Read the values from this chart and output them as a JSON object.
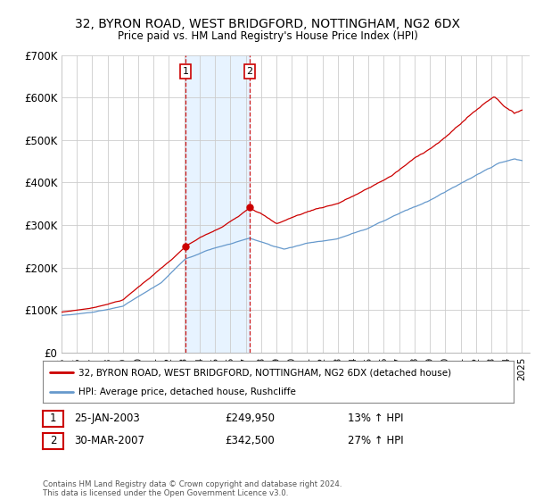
{
  "title": "32, BYRON ROAD, WEST BRIDGFORD, NOTTINGHAM, NG2 6DX",
  "subtitle": "Price paid vs. HM Land Registry's House Price Index (HPI)",
  "legend_line1": "32, BYRON ROAD, WEST BRIDGFORD, NOTTINGHAM, NG2 6DX (detached house)",
  "legend_line2": "HPI: Average price, detached house, Rushcliffe",
  "transaction1_label": "1",
  "transaction1_date": "25-JAN-2003",
  "transaction1_price": "£249,950",
  "transaction1_hpi": "13% ↑ HPI",
  "transaction2_label": "2",
  "transaction2_date": "30-MAR-2007",
  "transaction2_price": "£342,500",
  "transaction2_hpi": "27% ↑ HPI",
  "footer": "Contains HM Land Registry data © Crown copyright and database right 2024.\nThis data is licensed under the Open Government Licence v3.0.",
  "price_line_color": "#cc0000",
  "hpi_line_color": "#6699cc",
  "shading_color": "#ddeeff",
  "transaction_vline_color": "#cc0000",
  "background_color": "#ffffff",
  "plot_bg_color": "#ffffff",
  "grid_color": "#cccccc",
  "ylim": [
    0,
    700000
  ],
  "yticks": [
    0,
    100000,
    200000,
    300000,
    400000,
    500000,
    600000,
    700000
  ],
  "ytick_labels": [
    "£0",
    "£100K",
    "£200K",
    "£300K",
    "£400K",
    "£500K",
    "£600K",
    "£700K"
  ],
  "transaction1_x": 2003.07,
  "transaction2_x": 2007.25,
  "transaction1_y": 249950,
  "transaction2_y": 342500,
  "xmin": 1995,
  "xmax": 2025.5
}
